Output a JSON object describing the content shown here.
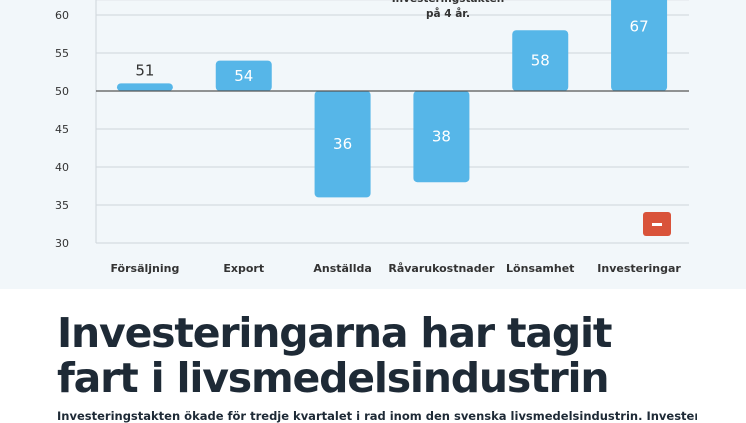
{
  "chart_data": {
    "type": "bar",
    "baseline": 50,
    "categories": [
      "Försäljning",
      "Export",
      "Anställda",
      "Råvarukostnader",
      "Lönsamhet",
      "Investeringar"
    ],
    "values": [
      51,
      54,
      36,
      38,
      58,
      67
    ],
    "value_labels": [
      "51",
      "54",
      "36",
      "38",
      "58",
      "67"
    ],
    "yticks": [
      30,
      35,
      40,
      45,
      50,
      55,
      60
    ],
    "ytick_labels": [
      "30",
      "35",
      "40",
      "45",
      "50",
      "55",
      "60"
    ],
    "ylim": [
      29,
      65
    ],
    "grid": true,
    "bar_color": "#56b6e8",
    "annotation_lines": [
      "Investeringstakten",
      "på 4 år."
    ]
  },
  "article": {
    "headline_line1": "Investeringarna har tagit",
    "headline_line2": "fart i livsmedelsindustrin",
    "lede": "Investeringstakten ökade för tredje kvartalet i rad inom den svenska livsmedelsindustrin. Investeringarna"
  },
  "controls": {
    "minus_icon": "minus-icon",
    "minus_color": "#d9533a"
  }
}
